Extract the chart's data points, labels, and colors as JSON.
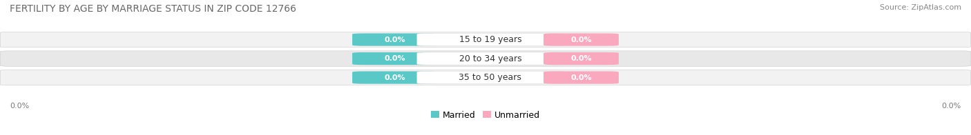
{
  "title": "FERTILITY BY AGE BY MARRIAGE STATUS IN ZIP CODE 12766",
  "source": "Source: ZipAtlas.com",
  "categories": [
    "15 to 19 years",
    "20 to 34 years",
    "35 to 50 years"
  ],
  "married_values": [
    0.0,
    0.0,
    0.0
  ],
  "unmarried_values": [
    0.0,
    0.0,
    0.0
  ],
  "married_color": "#5bc8c8",
  "unmarried_color": "#f9a8be",
  "row_bg_light": "#f2f2f2",
  "row_bg_dark": "#e8e8e8",
  "title_fontsize": 10,
  "source_fontsize": 8,
  "label_fontsize": 8,
  "category_fontsize": 9,
  "axis_label_fontsize": 8,
  "legend_married": "Married",
  "legend_unmarried": "Unmarried",
  "x_tick_label": "0.0%"
}
